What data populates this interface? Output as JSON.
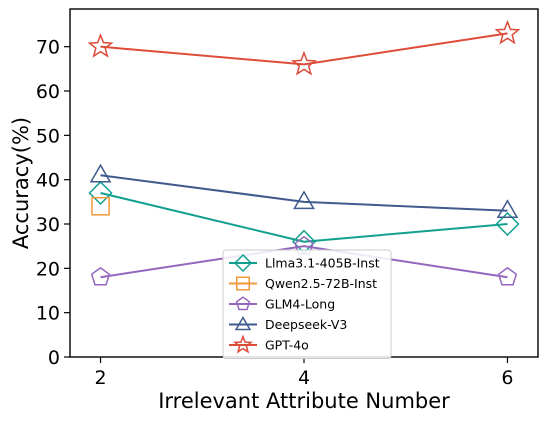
{
  "chart_data": {
    "type": "line",
    "xlabel": "Irrelevant Attribute Number",
    "ylabel": "Accuracy(%)",
    "x": [
      2,
      4,
      6
    ],
    "x_ticks": [
      "2",
      "4",
      "6"
    ],
    "y_ticks": [
      "0",
      "10",
      "20",
      "30",
      "40",
      "50",
      "60",
      "70"
    ],
    "xlim": [
      1.7,
      6.3
    ],
    "ylim": [
      0,
      78.5
    ],
    "grid": false,
    "legend_position": "lower center",
    "series": [
      {
        "name": "Llma3.1-405B-Inst",
        "values": [
          37,
          26,
          30
        ],
        "color": "#12a08e",
        "marker": "diamond"
      },
      {
        "name": "Qwen2.5-72B-Inst",
        "values": [
          34,
          null,
          null
        ],
        "color": "#f0983a",
        "marker": "square"
      },
      {
        "name": "GLM4-Long",
        "values": [
          18,
          25,
          18
        ],
        "color": "#9467bd",
        "marker": "pentagon"
      },
      {
        "name": "Deepseek-V3",
        "values": [
          41,
          35,
          33
        ],
        "color": "#3f5a8c",
        "marker": "triangle"
      },
      {
        "name": "GPT-4o",
        "values": [
          70,
          66,
          73
        ],
        "color": "#dd4b39",
        "marker": "star"
      }
    ]
  }
}
